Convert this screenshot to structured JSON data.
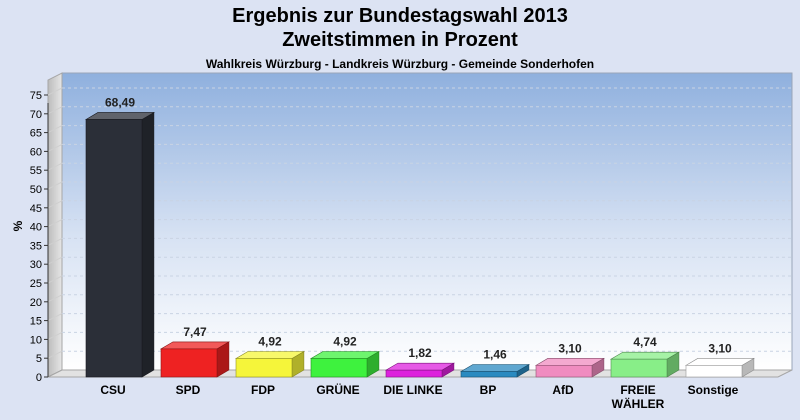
{
  "chart_data": {
    "type": "bar",
    "title": [
      "Ergebnis zur Bundestagswahl 2013",
      "Zweitstimmen in Prozent"
    ],
    "subtitle": "Wahlkreis Würzburg - Landkreis Würzburg - Gemeinde Sonderhofen",
    "ylabel": "%",
    "xlabel": "",
    "ylim": [
      0,
      75
    ],
    "yticks": [
      0,
      5,
      10,
      15,
      20,
      25,
      30,
      35,
      40,
      45,
      50,
      55,
      60,
      65,
      70,
      75
    ],
    "grid": true,
    "categories": [
      "CSU",
      "SPD",
      "FDP",
      "GRÜNE",
      "DIE LINKE",
      "BP",
      "AfD",
      "FREIE WÄHLER",
      "Sonstige"
    ],
    "category_labels": [
      [
        "CSU"
      ],
      [
        "SPD"
      ],
      [
        "FDP"
      ],
      [
        "GRÜNE"
      ],
      [
        "DIE LINKE"
      ],
      [
        "BP"
      ],
      [
        "AfD"
      ],
      [
        "FREIE",
        "WÄHLER"
      ],
      [
        "Sonstige"
      ]
    ],
    "values": [
      68.49,
      7.47,
      4.92,
      4.92,
      1.82,
      1.46,
      3.1,
      4.74,
      3.1
    ],
    "value_labels": [
      "68,49",
      "7,47",
      "4,92",
      "4,92",
      "1,82",
      "1,46",
      "3,10",
      "4,74",
      "3,10"
    ],
    "colors": [
      "#2b2f38",
      "#ee2222",
      "#f5f53a",
      "#3ef23e",
      "#dd22dd",
      "#2a8ac0",
      "#f08cc0",
      "#88ee88",
      "#ffffff"
    ]
  }
}
